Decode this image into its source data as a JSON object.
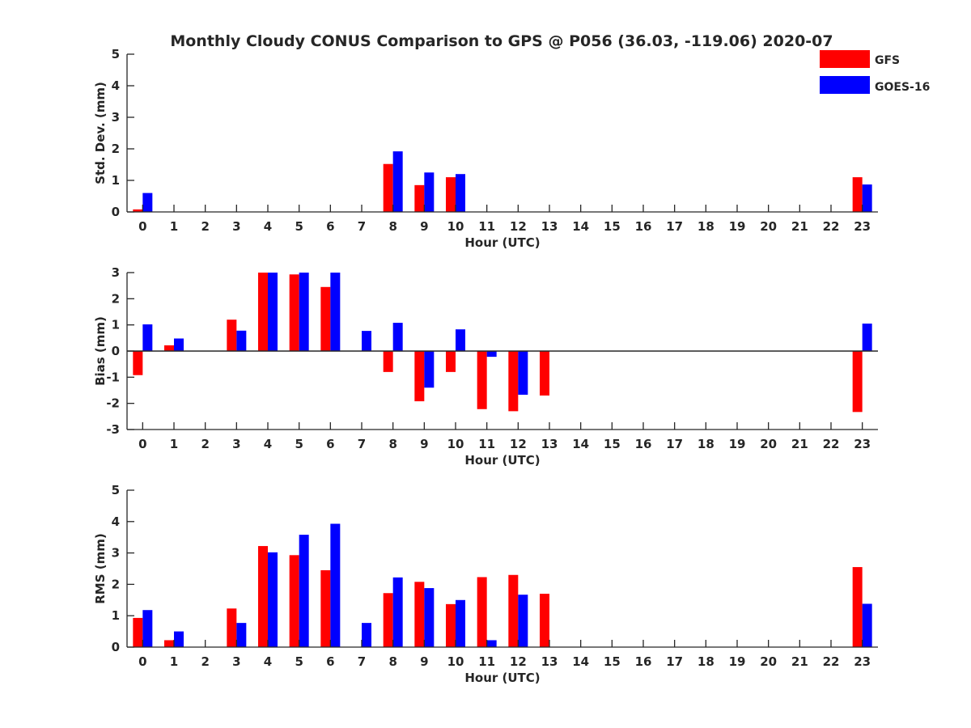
{
  "figure": {
    "title": "Monthly Cloudy CONUS Comparison to GPS @ P056 (36.03, -119.06) 2020-07"
  },
  "legend": {
    "placement": "top-right",
    "items": [
      {
        "label": "GFS",
        "color": "#ff0000"
      },
      {
        "label": "GOES-16",
        "color": "#0000ff"
      }
    ]
  },
  "chart_data": [
    {
      "type": "bar",
      "ylabel": "Std. Dev. (mm)",
      "xlabel": "Hour (UTC)",
      "ylim": [
        0,
        5
      ],
      "yticks": [
        0,
        1,
        2,
        3,
        4,
        5
      ],
      "categories": [
        "0",
        "1",
        "2",
        "3",
        "4",
        "5",
        "6",
        "7",
        "8",
        "9",
        "10",
        "11",
        "12",
        "13",
        "14",
        "15",
        "16",
        "17",
        "18",
        "19",
        "20",
        "21",
        "22",
        "23"
      ],
      "series": [
        {
          "name": "GFS",
          "color": "#ff0000",
          "values": [
            0.08,
            0,
            0,
            0,
            0,
            0,
            0,
            0,
            1.52,
            0.85,
            1.1,
            0,
            0,
            0,
            0,
            0,
            0,
            0,
            0,
            0,
            0,
            0,
            0,
            1.1
          ]
        },
        {
          "name": "GOES-16",
          "color": "#0000ff",
          "values": [
            0.6,
            0,
            0,
            0,
            0,
            0,
            0,
            0,
            1.92,
            1.25,
            1.2,
            0,
            0,
            0,
            0,
            0,
            0,
            0,
            0,
            0,
            0,
            0,
            0,
            0.87
          ]
        }
      ]
    },
    {
      "type": "bar",
      "ylabel": "Bias (mm)",
      "xlabel": "Hour (UTC)",
      "ylim": [
        -3,
        3
      ],
      "yticks": [
        -3,
        -2,
        -1,
        0,
        1,
        2,
        3
      ],
      "categories": [
        "0",
        "1",
        "2",
        "3",
        "4",
        "5",
        "6",
        "7",
        "8",
        "9",
        "10",
        "11",
        "12",
        "13",
        "14",
        "15",
        "16",
        "17",
        "18",
        "19",
        "20",
        "21",
        "22",
        "23"
      ],
      "series": [
        {
          "name": "GFS",
          "color": "#ff0000",
          "values": [
            -0.92,
            0.22,
            0,
            1.2,
            3.0,
            2.93,
            2.45,
            0,
            -0.8,
            -1.92,
            -0.8,
            -2.22,
            -2.3,
            -1.7,
            0,
            0,
            0,
            0,
            0,
            0,
            0,
            0,
            0,
            -2.33
          ]
        },
        {
          "name": "GOES-16",
          "color": "#0000ff",
          "values": [
            1.02,
            0.48,
            0,
            0.78,
            3.0,
            3.0,
            3.0,
            0.77,
            1.08,
            -1.4,
            0.83,
            -0.22,
            -1.67,
            0,
            0,
            0,
            0,
            0,
            0,
            0,
            0,
            0,
            0,
            1.05
          ]
        }
      ]
    },
    {
      "type": "bar",
      "ylabel": "RMS (mm)",
      "xlabel": "Hour (UTC)",
      "ylim": [
        0,
        5
      ],
      "yticks": [
        0,
        1,
        2,
        3,
        4,
        5
      ],
      "categories": [
        "0",
        "1",
        "2",
        "3",
        "4",
        "5",
        "6",
        "7",
        "8",
        "9",
        "10",
        "11",
        "12",
        "13",
        "14",
        "15",
        "16",
        "17",
        "18",
        "19",
        "20",
        "21",
        "22",
        "23"
      ],
      "series": [
        {
          "name": "GFS",
          "color": "#ff0000",
          "values": [
            0.93,
            0.22,
            0,
            1.23,
            3.22,
            2.93,
            2.45,
            0,
            1.72,
            2.08,
            1.37,
            2.23,
            2.3,
            1.7,
            0,
            0,
            0,
            0,
            0,
            0,
            0,
            0,
            0,
            2.55
          ]
        },
        {
          "name": "GOES-16",
          "color": "#0000ff",
          "values": [
            1.18,
            0.5,
            0,
            0.77,
            3.02,
            3.58,
            3.93,
            0.77,
            2.22,
            1.88,
            1.5,
            0.22,
            1.67,
            0,
            0,
            0,
            0,
            0,
            0,
            0,
            0,
            0,
            0,
            1.38
          ]
        }
      ]
    }
  ]
}
